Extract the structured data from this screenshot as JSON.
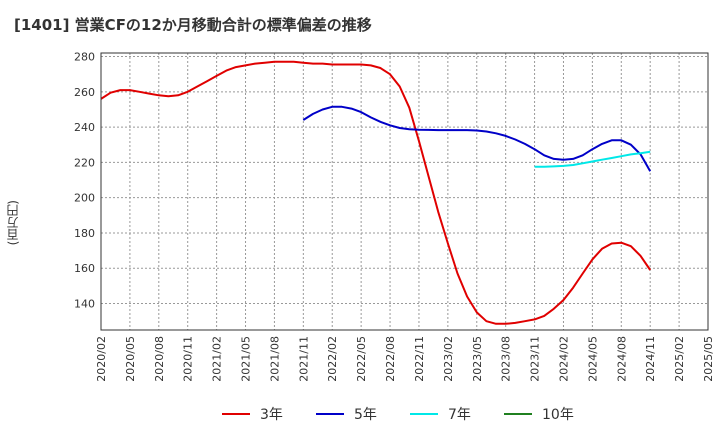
{
  "chart_data": {
    "type": "line",
    "title": "[1401]  営業CFの12か月移動合計の標準偏差の推移",
    "ylabel": "(百万円)",
    "xlabel": "",
    "ylim": [
      125,
      282
    ],
    "yticks": [
      140,
      160,
      180,
      200,
      220,
      240,
      260,
      280
    ],
    "x_start": "2020/02",
    "x_end": "2025/05",
    "xticks": [
      "2020/02",
      "2020/05",
      "2020/08",
      "2020/11",
      "2021/02",
      "2021/05",
      "2021/08",
      "2021/11",
      "2022/02",
      "2022/05",
      "2022/08",
      "2022/11",
      "2023/02",
      "2023/05",
      "2023/08",
      "2023/11",
      "2024/02",
      "2024/05",
      "2024/08",
      "2024/11",
      "2025/02",
      "2025/05"
    ],
    "grid": true,
    "legend_position": "bottom",
    "series": [
      {
        "name": "3年",
        "color": "#e00000",
        "points": [
          [
            "2020/02",
            256
          ],
          [
            "2020/03",
            259.5
          ],
          [
            "2020/04",
            261
          ],
          [
            "2020/05",
            261
          ],
          [
            "2020/06",
            260
          ],
          [
            "2020/07",
            259
          ],
          [
            "2020/08",
            258
          ],
          [
            "2020/09",
            257.5
          ],
          [
            "2020/10",
            258
          ],
          [
            "2020/11",
            260
          ],
          [
            "2020/12",
            263
          ],
          [
            "2021/01",
            266
          ],
          [
            "2021/02",
            269
          ],
          [
            "2021/03",
            272
          ],
          [
            "2021/04",
            274
          ],
          [
            "2021/05",
            275
          ],
          [
            "2021/06",
            276
          ],
          [
            "2021/07",
            276.5
          ],
          [
            "2021/08",
            277
          ],
          [
            "2021/09",
            277
          ],
          [
            "2021/10",
            277
          ],
          [
            "2021/11",
            276.5
          ],
          [
            "2021/12",
            276
          ],
          [
            "2022/01",
            276
          ],
          [
            "2022/02",
            275.5
          ],
          [
            "2022/03",
            275.5
          ],
          [
            "2022/04",
            275.5
          ],
          [
            "2022/05",
            275.5
          ],
          [
            "2022/06",
            275
          ],
          [
            "2022/07",
            273.5
          ],
          [
            "2022/08",
            270
          ],
          [
            "2022/09",
            263
          ],
          [
            "2022/10",
            251
          ],
          [
            "2022/11",
            232
          ],
          [
            "2022/12",
            212
          ],
          [
            "2023/01",
            192
          ],
          [
            "2023/02",
            174
          ],
          [
            "2023/03",
            157
          ],
          [
            "2023/04",
            144
          ],
          [
            "2023/05",
            135
          ],
          [
            "2023/06",
            130
          ],
          [
            "2023/07",
            128.5
          ],
          [
            "2023/08",
            128.5
          ],
          [
            "2023/09",
            129
          ],
          [
            "2023/10",
            130
          ],
          [
            "2023/11",
            131
          ],
          [
            "2023/12",
            133
          ],
          [
            "2024/01",
            137
          ],
          [
            "2024/02",
            142
          ],
          [
            "2024/03",
            149
          ],
          [
            "2024/04",
            157
          ],
          [
            "2024/05",
            165
          ],
          [
            "2024/06",
            171
          ],
          [
            "2024/07",
            174
          ],
          [
            "2024/08",
            174.5
          ],
          [
            "2024/09",
            172.5
          ],
          [
            "2024/10",
            167
          ],
          [
            "2024/11",
            159
          ]
        ]
      },
      {
        "name": "5年",
        "color": "#0000c8",
        "points": [
          [
            "2021/11",
            244
          ],
          [
            "2021/12",
            247.5
          ],
          [
            "2022/01",
            250
          ],
          [
            "2022/02",
            251.5
          ],
          [
            "2022/03",
            251.5
          ],
          [
            "2022/04",
            250.5
          ],
          [
            "2022/05",
            248.5
          ],
          [
            "2022/06",
            245.5
          ],
          [
            "2022/07",
            243
          ],
          [
            "2022/08",
            241
          ],
          [
            "2022/09",
            239.5
          ],
          [
            "2022/10",
            238.8
          ],
          [
            "2022/11",
            238.5
          ],
          [
            "2022/12",
            238.4
          ],
          [
            "2023/01",
            238.3
          ],
          [
            "2023/02",
            238.3
          ],
          [
            "2023/03",
            238.3
          ],
          [
            "2023/04",
            238.3
          ],
          [
            "2023/05",
            238.1
          ],
          [
            "2023/06",
            237.5
          ],
          [
            "2023/07",
            236.5
          ],
          [
            "2023/08",
            235
          ],
          [
            "2023/09",
            233
          ],
          [
            "2023/10",
            230.5
          ],
          [
            "2023/11",
            227.5
          ],
          [
            "2023/12",
            224
          ],
          [
            "2024/01",
            222
          ],
          [
            "2024/02",
            221.5
          ],
          [
            "2024/03",
            222
          ],
          [
            "2024/04",
            224
          ],
          [
            "2024/05",
            227.5
          ],
          [
            "2024/06",
            230.5
          ],
          [
            "2024/07",
            232.5
          ],
          [
            "2024/08",
            232.5
          ],
          [
            "2024/09",
            230
          ],
          [
            "2024/10",
            224.5
          ],
          [
            "2024/11",
            215
          ]
        ]
      },
      {
        "name": "7年",
        "color": "#00e8e8",
        "points": [
          [
            "2023/11",
            217.5
          ],
          [
            "2023/12",
            217.5
          ],
          [
            "2024/01",
            217.7
          ],
          [
            "2024/02",
            218
          ],
          [
            "2024/03",
            218.5
          ],
          [
            "2024/04",
            219.5
          ],
          [
            "2024/05",
            220.5
          ],
          [
            "2024/06",
            221.5
          ],
          [
            "2024/07",
            222.5
          ],
          [
            "2024/08",
            223.5
          ],
          [
            "2024/09",
            224.5
          ],
          [
            "2024/10",
            225.2
          ],
          [
            "2024/11",
            226
          ]
        ]
      },
      {
        "name": "10年",
        "color": "#208020",
        "points": []
      }
    ]
  }
}
